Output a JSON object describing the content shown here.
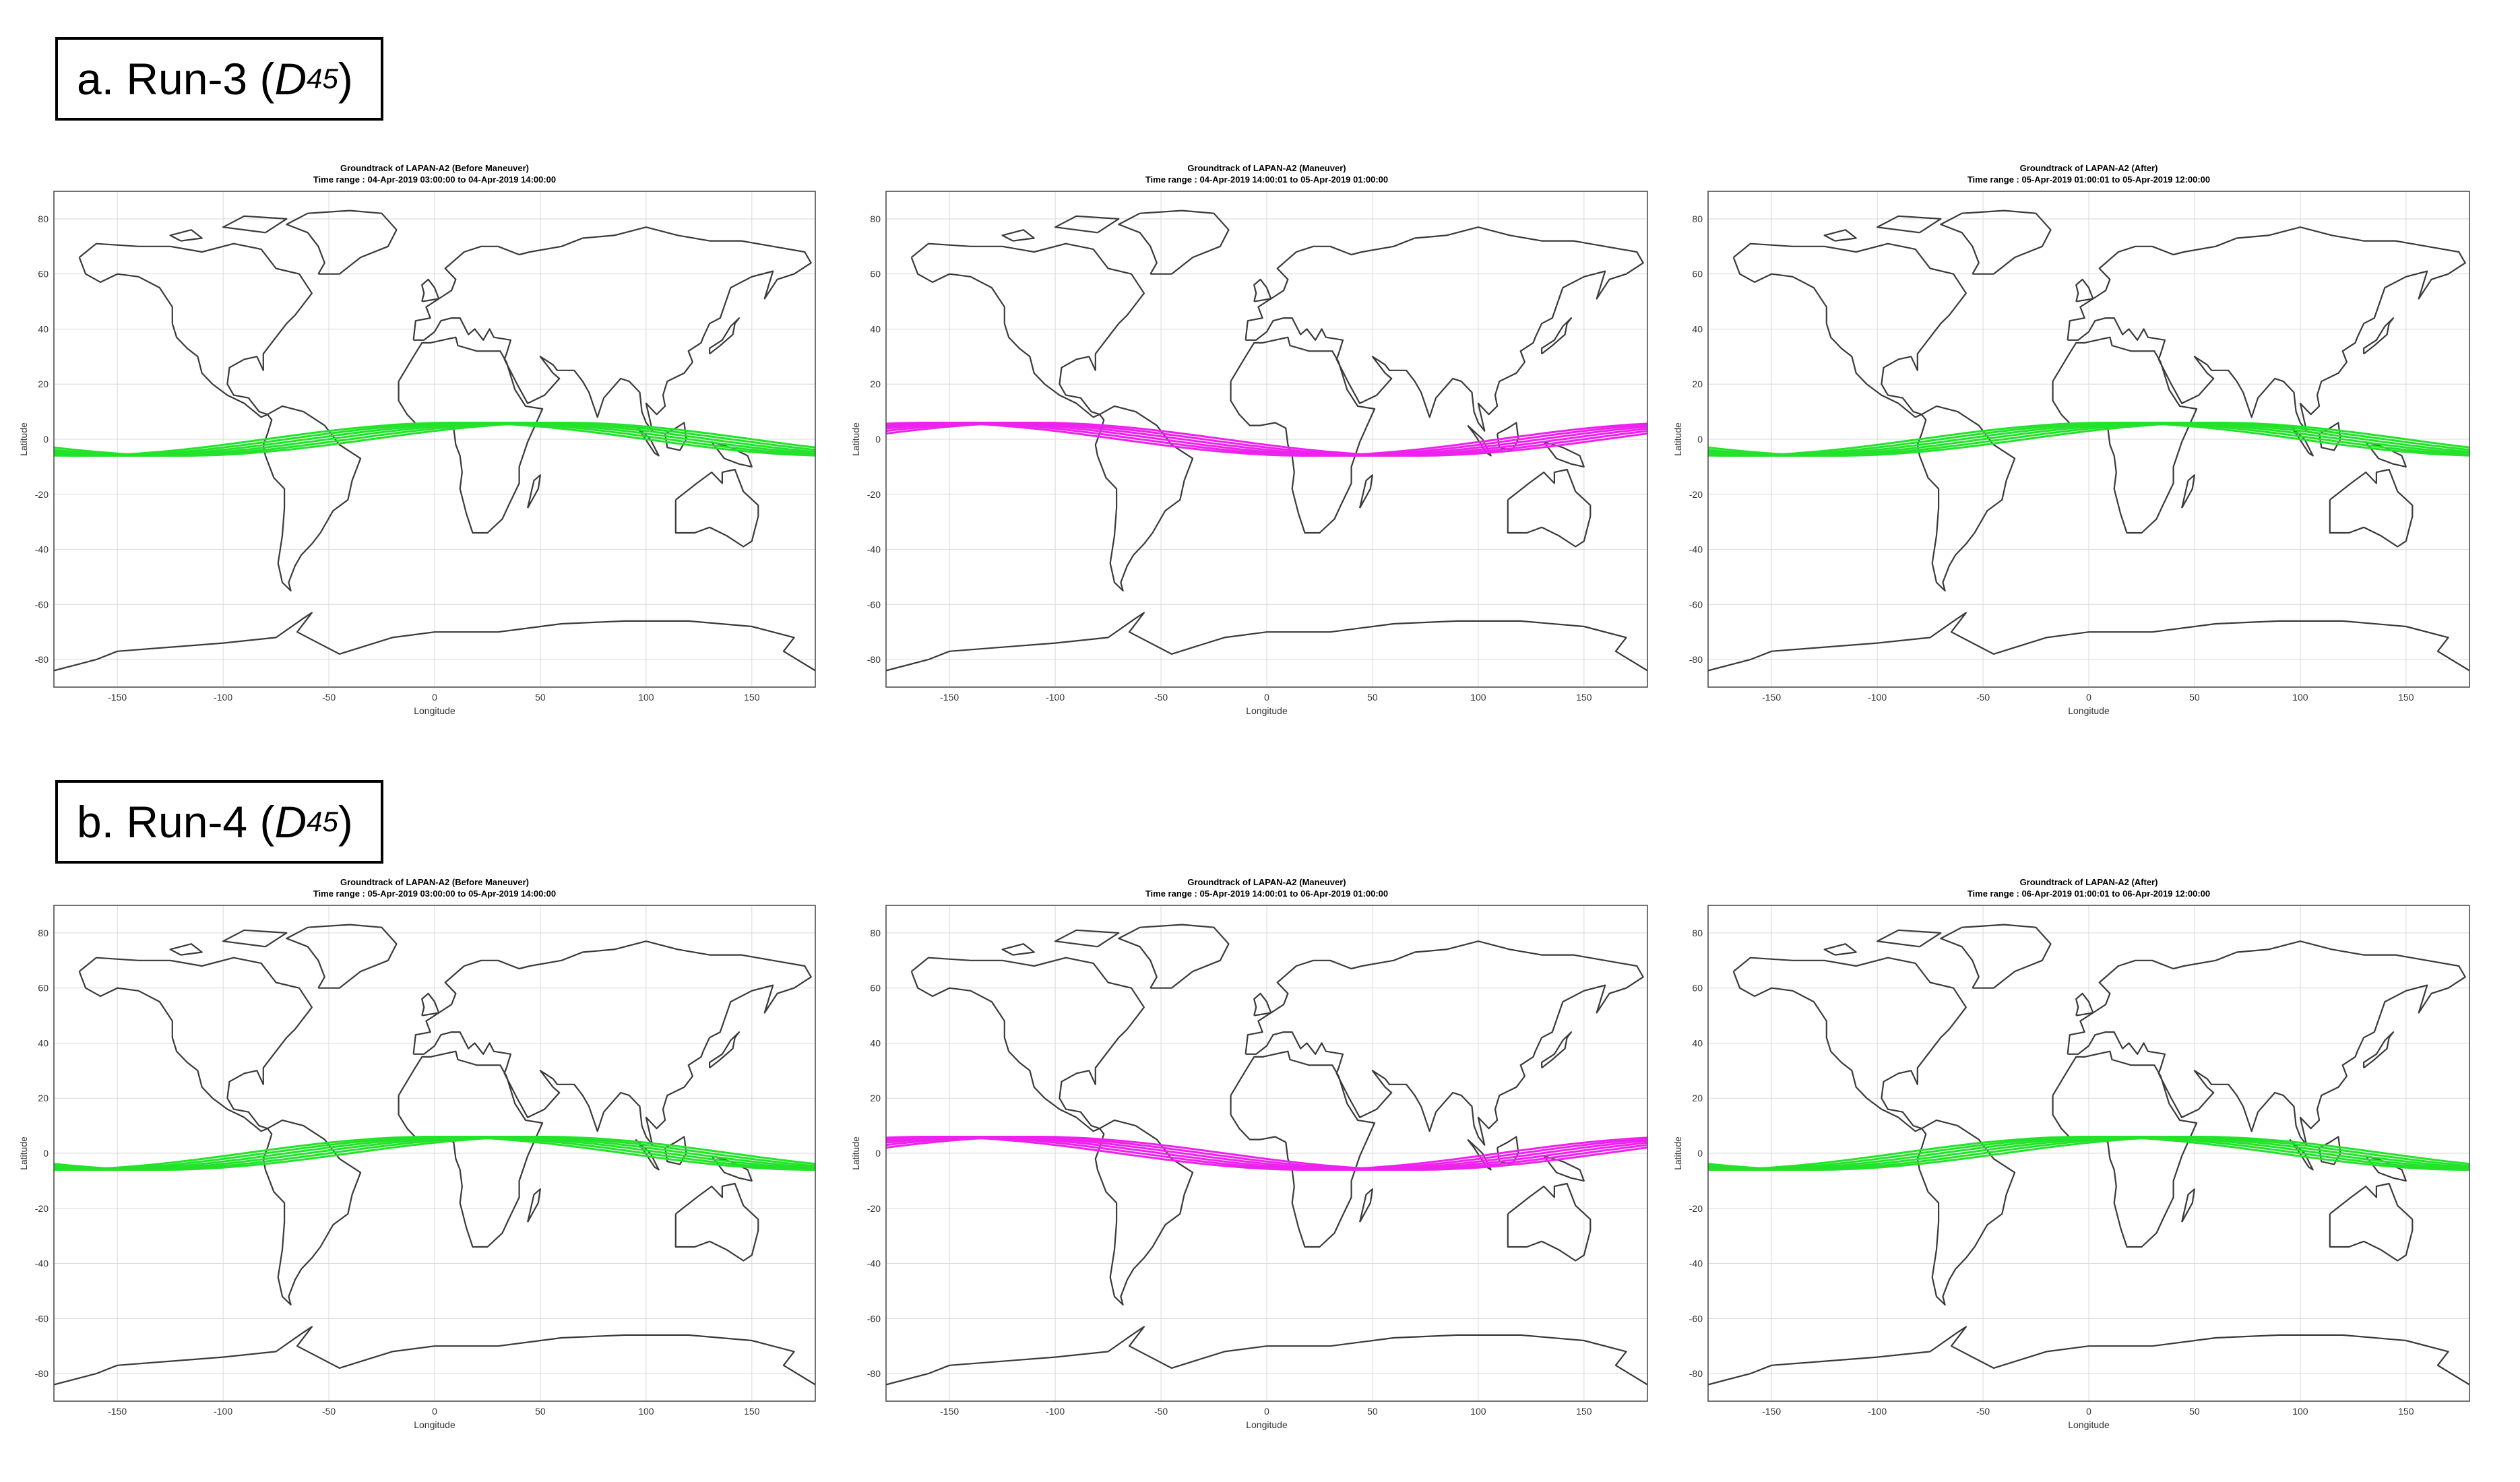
{
  "sections": [
    {
      "prefix": "a. Run-3 (",
      "sym": "D",
      "sub": "45",
      "suffix": ")"
    },
    {
      "prefix": "b. Run-4 (",
      "sym": "D",
      "sub": "45",
      "suffix": ")"
    }
  ],
  "colors": {
    "before_after": "#22e32a",
    "maneuver": "#ee22ee",
    "coast": "#3a3a3a",
    "grid": "#d9d9d9"
  },
  "chart_data": [
    {
      "type": "line",
      "title": "Groundtrack of LAPAN-A2 (Before Maneuver)",
      "subtitle": "Time range : 04-Apr-2019 03:00:00 to 04-Apr-2019 14:00:00",
      "xlabel": "Longitude",
      "ylabel": "Latitude",
      "xlim": [
        -180,
        180
      ],
      "ylim": [
        -90,
        90
      ],
      "xticks": [
        -150,
        -100,
        -50,
        0,
        50,
        100,
        150
      ],
      "yticks": [
        80,
        60,
        40,
        20,
        0,
        -20,
        -40,
        -60,
        -80
      ],
      "grid": true,
      "series": [
        {
          "amplitude": 6,
          "passes": 6,
          "color": "#22e32a",
          "peak_lon": 10
        }
      ]
    },
    {
      "type": "line",
      "title": "Groundtrack of LAPAN-A2 (Maneuver)",
      "subtitle": "Time range : 04-Apr-2019 14:00:01 to 05-Apr-2019 01:00:00",
      "xlabel": "Longitude",
      "ylabel": "Latitude",
      "xlim": [
        -180,
        180
      ],
      "ylim": [
        -90,
        90
      ],
      "xticks": [
        -150,
        -100,
        -50,
        0,
        50,
        100,
        150
      ],
      "yticks": [
        80,
        60,
        40,
        20,
        0,
        -20,
        -40,
        -60,
        -80
      ],
      "grid": true,
      "series": [
        {
          "amplitude": 6,
          "passes": 6,
          "color": "#ee22ee",
          "peak_lon": -160
        }
      ]
    },
    {
      "type": "line",
      "title": "Groundtrack of LAPAN-A2 (After)",
      "subtitle": "Time range : 05-Apr-2019 01:00:01 to 05-Apr-2019 12:00:00",
      "xlabel": "Longitude",
      "ylabel": "Latitude",
      "xlim": [
        -180,
        180
      ],
      "ylim": [
        -90,
        90
      ],
      "xticks": [
        -150,
        -100,
        -50,
        0,
        50,
        100,
        150
      ],
      "yticks": [
        80,
        60,
        40,
        20,
        0,
        -20,
        -40,
        -60,
        -80
      ],
      "grid": true,
      "series": [
        {
          "amplitude": 6,
          "passes": 6,
          "color": "#22e32a",
          "peak_lon": 10
        }
      ]
    },
    {
      "type": "line",
      "title": "Groundtrack of LAPAN-A2 (Before Maneuver)",
      "subtitle": "Time range : 05-Apr-2019 03:00:00 to 05-Apr-2019 14:00:00",
      "xlabel": "Longitude",
      "ylabel": "Latitude",
      "xlim": [
        -180,
        180
      ],
      "ylim": [
        -90,
        90
      ],
      "xticks": [
        -150,
        -100,
        -50,
        0,
        50,
        100,
        150
      ],
      "yticks": [
        80,
        60,
        40,
        20,
        0,
        -20,
        -40,
        -60,
        -80
      ],
      "grid": true,
      "series": [
        {
          "amplitude": 6,
          "passes": 6,
          "color": "#22e32a",
          "peak_lon": 0
        }
      ]
    },
    {
      "type": "line",
      "title": "Groundtrack of LAPAN-A2 (Maneuver)",
      "subtitle": "Time range : 05-Apr-2019 14:00:01 to 06-Apr-2019 01:00:00",
      "xlabel": "Longitude",
      "ylabel": "Latitude",
      "xlim": [
        -180,
        180
      ],
      "ylim": [
        -90,
        90
      ],
      "xticks": [
        -150,
        -100,
        -50,
        0,
        50,
        100,
        150
      ],
      "yticks": [
        80,
        60,
        40,
        20,
        0,
        -20,
        -40,
        -60,
        -80
      ],
      "grid": true,
      "series": [
        {
          "amplitude": 6,
          "passes": 6,
          "color": "#ee22ee",
          "peak_lon": -160
        }
      ]
    },
    {
      "type": "line",
      "title": "Groundtrack of LAPAN-A2 (After)",
      "subtitle": "Time range : 06-Apr-2019 01:00:01 to 06-Apr-2019 12:00:00",
      "xlabel": "Longitude",
      "ylabel": "Latitude",
      "xlim": [
        -180,
        180
      ],
      "ylim": [
        -90,
        90
      ],
      "xticks": [
        -150,
        -100,
        -50,
        0,
        50,
        100,
        150
      ],
      "yticks": [
        80,
        60,
        40,
        20,
        0,
        -20,
        -40,
        -60,
        -80
      ],
      "grid": true,
      "series": [
        {
          "amplitude": 6,
          "passes": 6,
          "color": "#22e32a",
          "peak_lon": 0
        }
      ]
    }
  ]
}
